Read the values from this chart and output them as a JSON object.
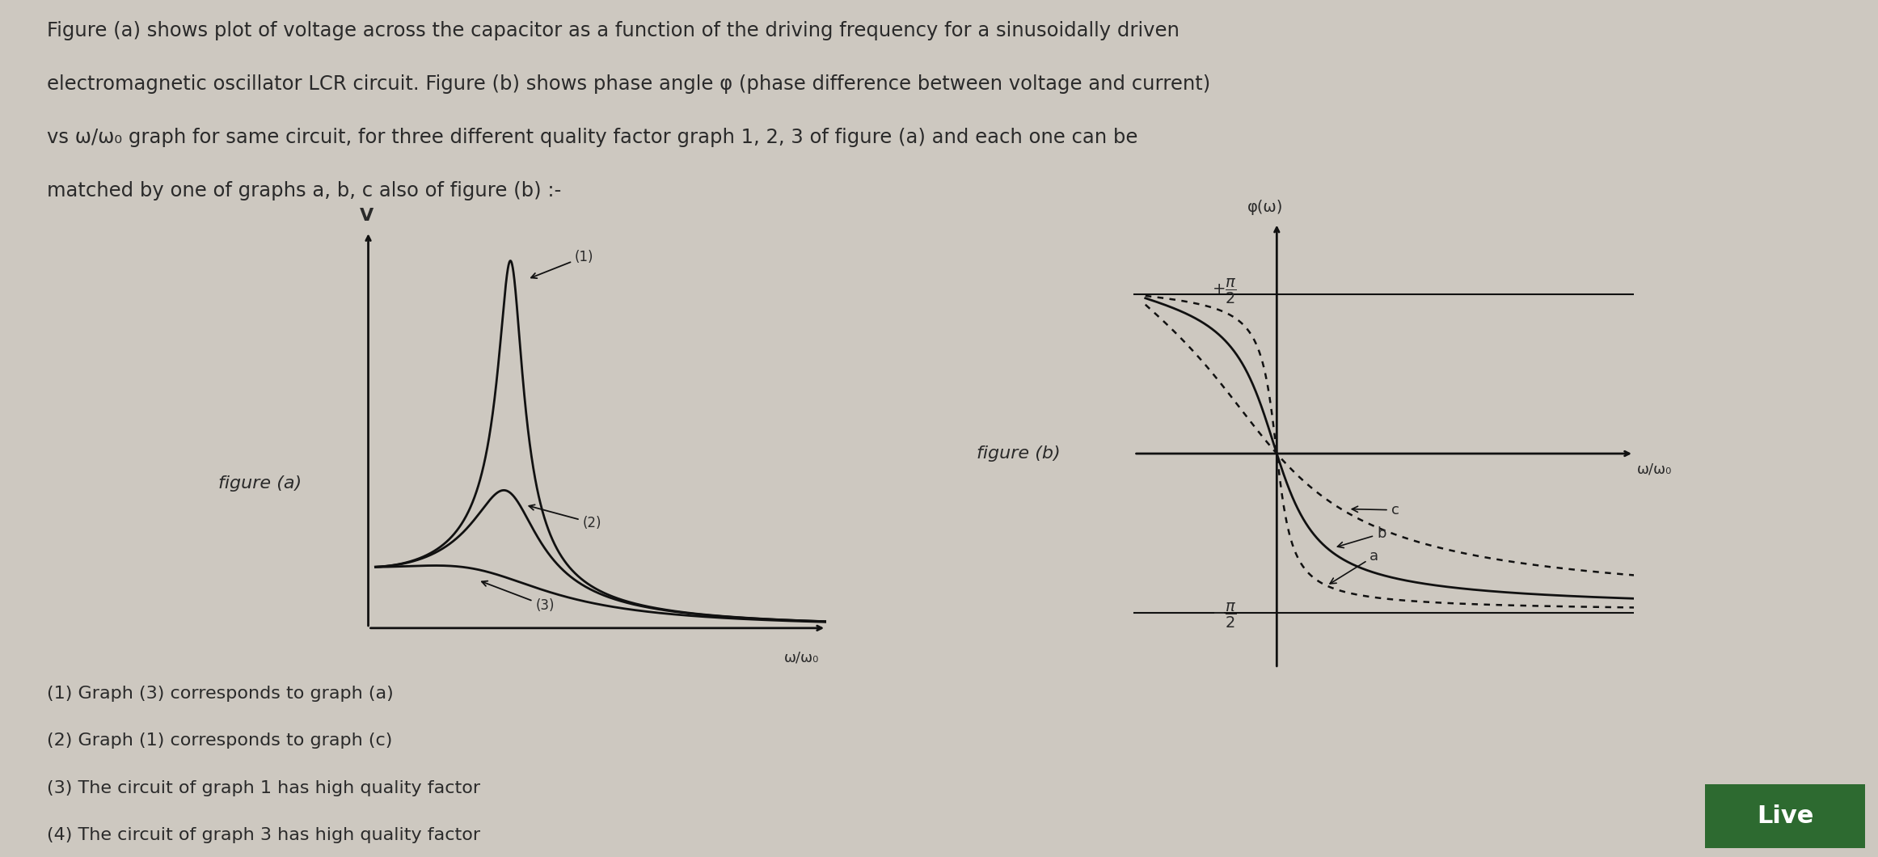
{
  "bg_color": "#cdc8c0",
  "text_color": "#2a2a2a",
  "title_line1": "Figure (a) shows plot of voltage across the capacitor as a function of the driving frequency for a sinusoidally driven",
  "title_line2": "electromagnetic oscillator LCR circuit. Figure (b) shows phase angle φ (phase difference between voltage and current)",
  "title_line3": "vs ω/ω₀ graph for same circuit, for three different quality factor graph 1, 2, 3 of figure (a) and each one can be",
  "title_line4": "matched by one of graphs a, b, c also of figure (b) :-",
  "fig_a_label": "figure (a)",
  "fig_b_label": "figure (b)",
  "fig_a_ylabel": "V",
  "fig_a_xlabel": "ω/ω₀",
  "fig_b_ylabel": "φ(ω)",
  "fig_b_xlabel": "ω/ω₀",
  "curve_labels_a": [
    "(1)",
    "(2)",
    "(3)"
  ],
  "curve_labels_b": [
    "a",
    "b",
    "c"
  ],
  "options": [
    "(1) Graph (3) corresponds to graph (a)",
    "(2) Graph (1) corresponds to graph (c)",
    "(3) The circuit of graph 1 has high quality factor",
    "(4) The circuit of graph 3 has high quality factor"
  ],
  "live_badge": "Live",
  "live_bg": "#2d6a30"
}
